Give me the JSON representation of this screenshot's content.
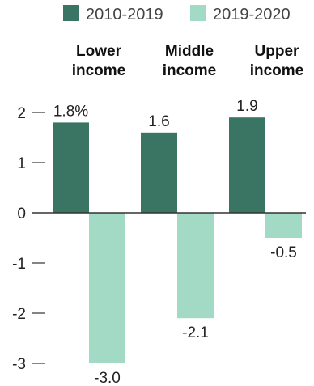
{
  "chart_data": {
    "type": "bar",
    "title": "",
    "xlabel": "",
    "ylabel": "",
    "categories": [
      {
        "line1": "Lower",
        "line2": "income"
      },
      {
        "line1": "Middle",
        "line2": "income"
      },
      {
        "line1": "Upper",
        "line2": "income"
      }
    ],
    "series": [
      {
        "name": "2010-2019",
        "color": "#3a7563",
        "values": [
          1.8,
          1.6,
          1.9
        ],
        "labels": [
          "1.8%",
          "1.6",
          "1.9"
        ]
      },
      {
        "name": "2019-2020",
        "color": "#a3dac6",
        "values": [
          -3.0,
          -2.1,
          -0.5
        ],
        "labels": [
          "-3.0",
          "-2.1",
          "-0.5"
        ]
      }
    ],
    "ylim": [
      -3,
      2
    ],
    "yticks": [
      {
        "value": 2,
        "label": "2"
      },
      {
        "value": 1,
        "label": "1"
      },
      {
        "value": 0,
        "label": "0"
      },
      {
        "value": -1,
        "label": "-1"
      },
      {
        "value": -2,
        "label": "-2"
      },
      {
        "value": -3,
        "label": "-3"
      }
    ],
    "legend": "top",
    "grid": false
  }
}
